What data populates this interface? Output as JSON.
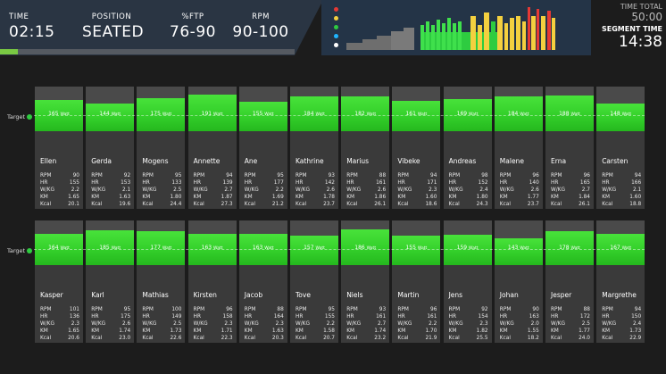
{
  "header": {
    "time": {
      "label": "TIME",
      "value": "02:15"
    },
    "position": {
      "label": "POSITION",
      "value": "SEATED"
    },
    "ftp": {
      "label": "%FTP",
      "value": "76-90"
    },
    "rpm": {
      "label": "RPM",
      "value": "90-100"
    },
    "progress_fraction": 0.06,
    "time_total": {
      "label": "TIME TOTAL",
      "value": "50:00"
    },
    "segment_time": {
      "label": "SEGMENT TIME",
      "value": "14:38"
    }
  },
  "overview_legend_colors": [
    "#e53935",
    "#f4d03f",
    "#2ecc40",
    "#1fb5ff",
    "#ffffff"
  ],
  "target_label": "Target",
  "stat_labels": [
    "RPM",
    "HR",
    "W/KG",
    "KM",
    "Kcal"
  ],
  "watt_unit": "Watt",
  "riders": [
    {
      "name": "Ellen",
      "watt": 165,
      "rpm": "90",
      "hr": "155",
      "wkg": "2.2",
      "km": "1.65",
      "kcal": "20.1"
    },
    {
      "name": "Gerda",
      "watt": 144,
      "rpm": "92",
      "hr": "153",
      "wkg": "2.1",
      "km": "1.63",
      "kcal": "19.6"
    },
    {
      "name": "Mogens",
      "watt": 175,
      "rpm": "95",
      "hr": "133",
      "wkg": "2.5",
      "km": "1.80",
      "kcal": "24.4"
    },
    {
      "name": "Annette",
      "watt": 191,
      "rpm": "94",
      "hr": "139",
      "wkg": "2.7",
      "km": "1.87",
      "kcal": "27.3"
    },
    {
      "name": "Ane",
      "watt": 155,
      "rpm": "95",
      "hr": "177",
      "wkg": "2.2",
      "km": "1.69",
      "kcal": "21.2"
    },
    {
      "name": "Kathrine",
      "watt": 184,
      "rpm": "93",
      "hr": "142",
      "wkg": "2.6",
      "km": "1.78",
      "kcal": "23.7"
    },
    {
      "name": "Marius",
      "watt": 182,
      "rpm": "88",
      "hr": "161",
      "wkg": "2.6",
      "km": "1.86",
      "kcal": "26.1"
    },
    {
      "name": "Vibeke",
      "watt": 161,
      "rpm": "94",
      "hr": "171",
      "wkg": "2.3",
      "km": "1.60",
      "kcal": "18.6"
    },
    {
      "name": "Andreas",
      "watt": 169,
      "rpm": "98",
      "hr": "152",
      "wkg": "2.4",
      "km": "1.80",
      "kcal": "24.3"
    },
    {
      "name": "Malene",
      "watt": 184,
      "rpm": "96",
      "hr": "140",
      "wkg": "2.6",
      "km": "1.77",
      "kcal": "23.7"
    },
    {
      "name": "Erna",
      "watt": 188,
      "rpm": "96",
      "hr": "165",
      "wkg": "2.7",
      "km": "1.84",
      "kcal": "26.1"
    },
    {
      "name": "Carsten",
      "watt": 148,
      "rpm": "94",
      "hr": "166",
      "wkg": "2.1",
      "km": "1.60",
      "kcal": "18.8"
    },
    {
      "name": "Kasper",
      "watt": 164,
      "rpm": "101",
      "hr": "136",
      "wkg": "2.3",
      "km": "1.65",
      "kcal": "20.6"
    },
    {
      "name": "Karl",
      "watt": 185,
      "rpm": "95",
      "hr": "175",
      "wkg": "2.6",
      "km": "1.74",
      "kcal": "23.0"
    },
    {
      "name": "Mathias",
      "watt": 177,
      "rpm": "100",
      "hr": "149",
      "wkg": "2.5",
      "km": "1.73",
      "kcal": "22.6"
    },
    {
      "name": "Kirsten",
      "watt": 163,
      "rpm": "96",
      "hr": "158",
      "wkg": "2.3",
      "km": "1.71",
      "kcal": "22.3"
    },
    {
      "name": "Jacob",
      "watt": 163,
      "rpm": "88",
      "hr": "164",
      "wkg": "2.3",
      "km": "1.63",
      "kcal": "20.3"
    },
    {
      "name": "Tove",
      "watt": 157,
      "rpm": "95",
      "hr": "155",
      "wkg": "2.2",
      "km": "1.58",
      "kcal": "20.7"
    },
    {
      "name": "Niels",
      "watt": 186,
      "rpm": "93",
      "hr": "161",
      "wkg": "2.7",
      "km": "1.74",
      "kcal": "23.2"
    },
    {
      "name": "Martin",
      "watt": 155,
      "rpm": "96",
      "hr": "161",
      "wkg": "2.2",
      "km": "1.70",
      "kcal": "21.9"
    },
    {
      "name": "Jens",
      "watt": 159,
      "rpm": "92",
      "hr": "154",
      "wkg": "2.3",
      "km": "1.82",
      "kcal": "25.5"
    },
    {
      "name": "Johan",
      "watt": 143,
      "rpm": "90",
      "hr": "163",
      "wkg": "2.0",
      "km": "1.55",
      "kcal": "18.2"
    },
    {
      "name": "Jesper",
      "watt": 178,
      "rpm": "88",
      "hr": "172",
      "wkg": "2.5",
      "km": "1.77",
      "kcal": "24.0"
    },
    {
      "name": "Margrethe",
      "watt": 167,
      "rpm": "94",
      "hr": "150",
      "wkg": "2.4",
      "km": "1.73",
      "kcal": "22.9"
    }
  ]
}
